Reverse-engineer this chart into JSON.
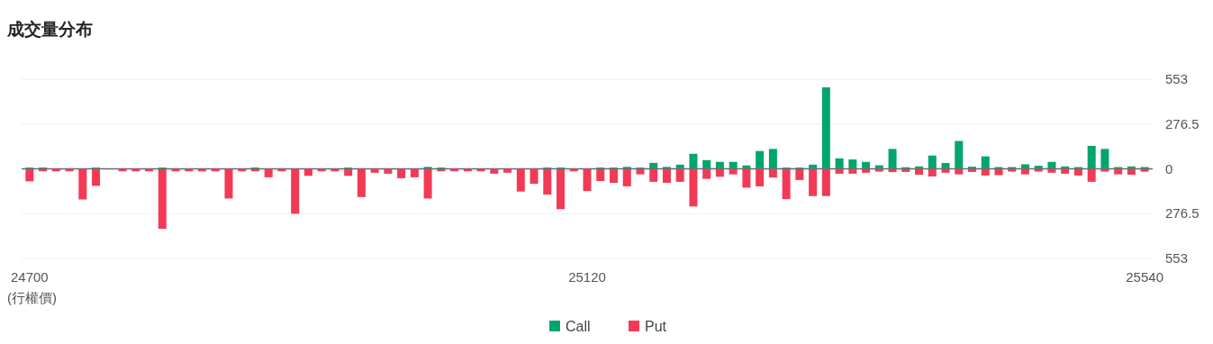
{
  "chart_data": {
    "type": "bar",
    "title": "成交量分布",
    "xlabel": "(行權價)",
    "x": [
      24700,
      24710,
      24720,
      24730,
      24740,
      24750,
      24760,
      24770,
      24780,
      24790,
      24800,
      24810,
      24820,
      24830,
      24840,
      24850,
      24860,
      24870,
      24880,
      24890,
      24900,
      24910,
      24920,
      24930,
      24940,
      24950,
      24960,
      24970,
      24980,
      24990,
      25000,
      25010,
      25020,
      25030,
      25040,
      25050,
      25060,
      25070,
      25080,
      25090,
      25100,
      25110,
      25120,
      25130,
      25140,
      25150,
      25160,
      25170,
      25180,
      25190,
      25200,
      25210,
      25220,
      25230,
      25240,
      25250,
      25260,
      25270,
      25280,
      25290,
      25300,
      25310,
      25320,
      25330,
      25340,
      25350,
      25360,
      25370,
      25380,
      25390,
      25400,
      25410,
      25420,
      25430,
      25440,
      25450,
      25460,
      25470,
      25480,
      25490,
      25500,
      25510,
      25520,
      25530,
      25540
    ],
    "series": [
      {
        "name": "Call",
        "color": "#02a56c",
        "values": [
          8,
          8,
          null,
          null,
          null,
          8,
          null,
          null,
          null,
          null,
          8,
          null,
          null,
          null,
          null,
          null,
          null,
          8,
          null,
          null,
          null,
          null,
          null,
          null,
          8,
          null,
          null,
          null,
          null,
          null,
          12,
          8,
          null,
          null,
          null,
          null,
          null,
          null,
          null,
          8,
          8,
          null,
          null,
          8,
          8,
          12,
          8,
          37,
          12,
          26,
          93,
          54,
          43,
          43,
          21,
          110,
          123,
          8,
          8,
          26,
          503,
          65,
          58,
          43,
          22,
          123,
          10,
          15,
          82,
          36,
          172,
          13,
          77,
          11,
          11,
          28,
          19,
          43,
          15,
          11,
          142,
          123,
          11,
          15,
          11
        ]
      },
      {
        "name": "Put",
        "color": "#f23a56",
        "values": [
          -77,
          -15,
          -15,
          -15,
          -189,
          -105,
          0,
          -15,
          -15,
          -15,
          -370,
          -15,
          -15,
          -15,
          -15,
          -183,
          -15,
          -15,
          -52,
          -15,
          -277,
          -43,
          -15,
          -15,
          -43,
          -174,
          -24,
          -30,
          -58,
          -52,
          -183,
          -15,
          -15,
          -15,
          -15,
          -30,
          -24,
          -140,
          -92,
          -159,
          -249,
          -15,
          -137,
          -75,
          -86,
          -108,
          -34,
          -80,
          -86,
          -80,
          -232,
          -62,
          -49,
          -34,
          -116,
          -108,
          -54,
          -187,
          -69,
          -168,
          -168,
          -30,
          -30,
          -24,
          -17,
          -20,
          -19,
          -36,
          -47,
          -24,
          -34,
          -19,
          -41,
          -39,
          -17,
          -34,
          -17,
          -24,
          -30,
          -41,
          -80,
          -17,
          -34,
          -36,
          -17
        ]
      }
    ],
    "xlim": [
      24694,
      25546
    ],
    "xticks": [
      24700,
      25120,
      25540
    ],
    "ylim": [
      -553,
      553
    ],
    "yticks": [
      {
        "value": -553,
        "label": "553"
      },
      {
        "value": -276.5,
        "label": "276.5"
      },
      0,
      276.5,
      553
    ],
    "grid": "y",
    "legend": "bottom"
  }
}
